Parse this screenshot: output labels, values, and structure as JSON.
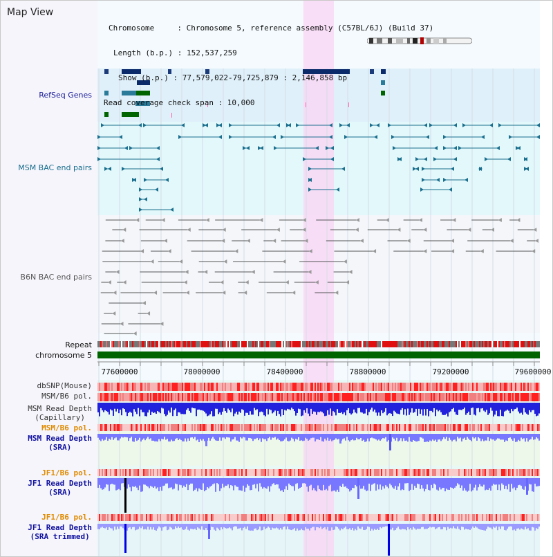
{
  "app": {
    "title": "Map View"
  },
  "info": {
    "chromosome": "Chromosome     : Chromosome 5, reference assembly (C57BL/6J) (Build 37)",
    "length": "Length (b.p.) : 152,537,259",
    "show": "Show (b.p.) : 77,579,022-79,725,879 : 2,146,858 bp",
    "coverage": "Read coverage check span : 10,000"
  },
  "tracks": {
    "refseq": "RefSeq Genes",
    "msm_bac": "MSM BAC end pairs",
    "b6n_bac": "B6N BAC end pairs",
    "repeat": "Repeat",
    "chromosome": "chromosome 5",
    "dbsnp": "dbSNP(Mouse)",
    "msm_b6_pol_1": "MSM/B6 pol.",
    "msm_read_depth_cap_1": "MSM Read Depth",
    "msm_read_depth_cap_2": "(Capillary)",
    "msm_b6_pol_2": "MSM/B6 pol.",
    "msm_read_depth_sra_1": "MSM Read Depth",
    "msm_read_depth_sra_2": "(SRA)",
    "jf1_b6_pol_1": "JF1/B6 pol.",
    "jf1_read_depth_sra_1": "JF1 Read Depth",
    "jf1_read_depth_sra_2": "(SRA)",
    "jf1_b6_pol_2": "JF1/B6 pol.",
    "jf1_read_depth_trim_1": "JF1 Read Depth",
    "jf1_read_depth_trim_2": "(SRA trimmed)"
  },
  "axis": {
    "ticks": [
      "77600000",
      "78000000",
      "78400000",
      "78800000",
      "79200000",
      "79600000"
    ]
  },
  "colors": {
    "highlight": "#f8d8f4",
    "refseq_bg": "#dff0fa",
    "msm_bg": "#e2f8fa",
    "chromosome": "#006400",
    "read_depth": "#7777ff",
    "read_depth_strong": "#0000e6",
    "pol_red": "#ff2020"
  }
}
